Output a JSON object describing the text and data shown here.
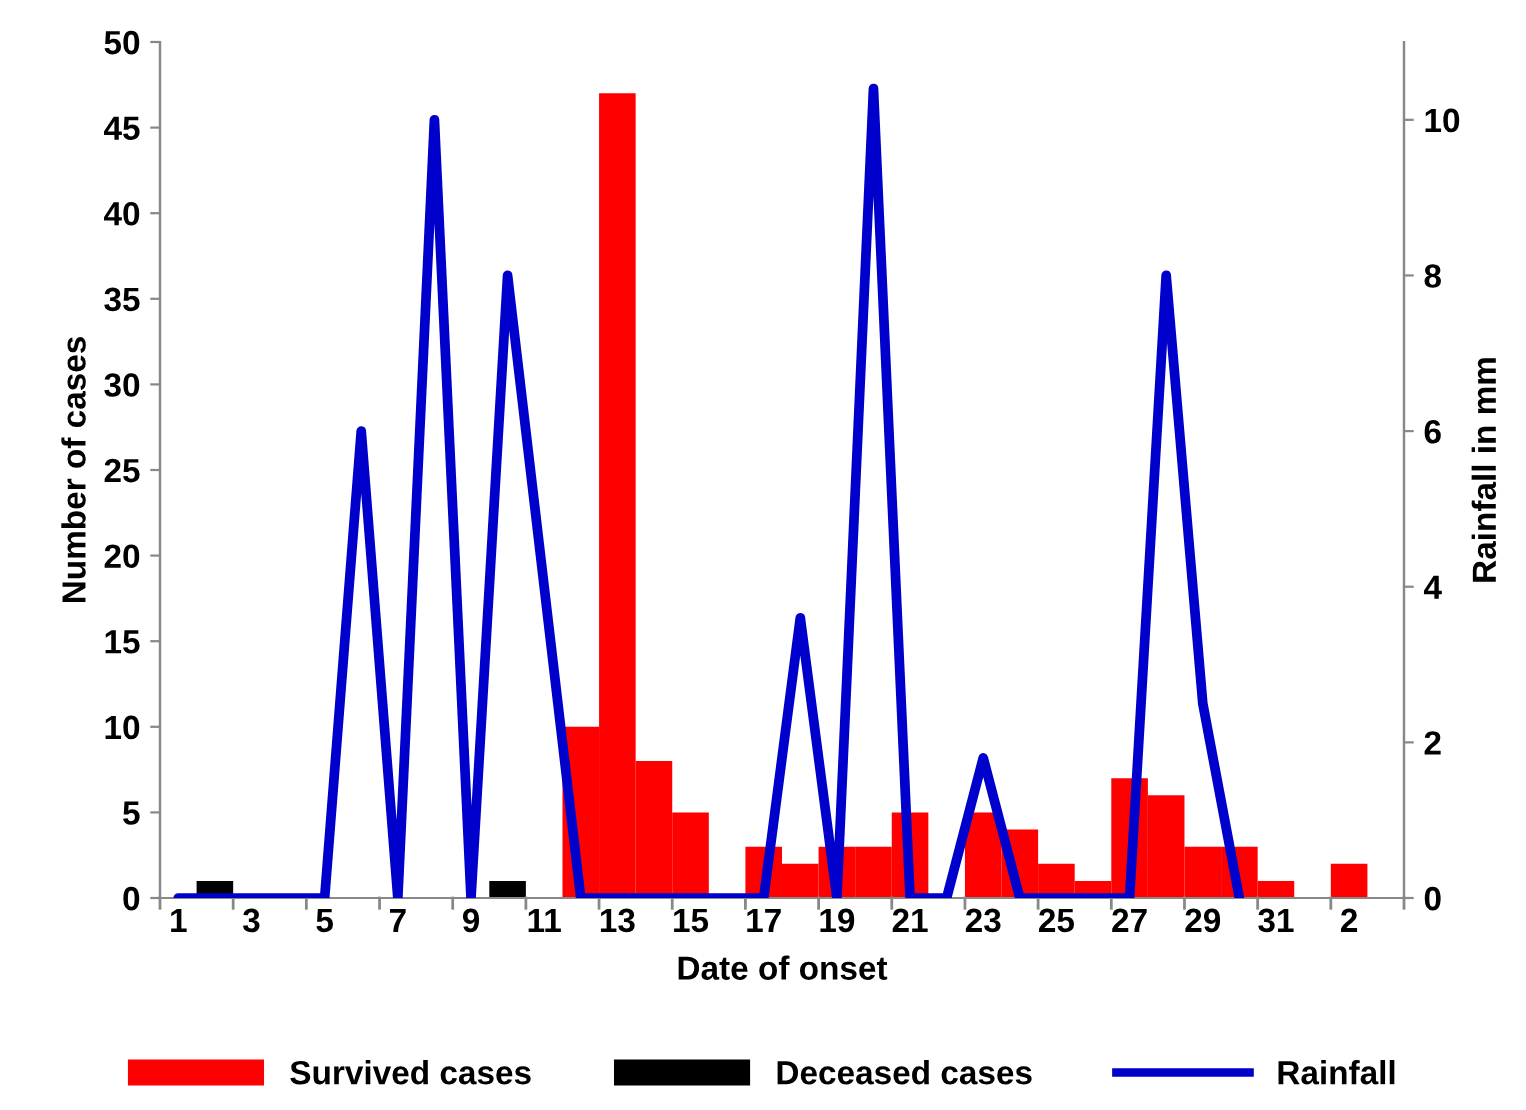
{
  "chart_data": {
    "type": "bar",
    "xlabel": "Date of onset",
    "ylabel": "Number of cases",
    "y2label": "Rainfall in mm",
    "categories": [
      "1",
      null,
      "3",
      null,
      "5",
      null,
      "7",
      null,
      "9",
      null,
      "11",
      null,
      "13",
      null,
      "15",
      null,
      "17",
      null,
      "19",
      null,
      "21",
      null,
      "23",
      null,
      "25",
      null,
      "27",
      null,
      "29",
      null,
      "31",
      null,
      "2",
      null
    ],
    "series": [
      {
        "name": "Survived cases",
        "color": "#ff0000",
        "values": [
          0,
          0,
          0,
          0,
          0,
          0,
          0,
          0,
          0,
          0,
          0,
          10,
          47,
          8,
          5,
          0,
          3,
          2,
          3,
          3,
          5,
          0,
          5,
          4,
          2,
          1,
          7,
          6,
          3,
          3,
          1,
          0,
          2,
          0
        ]
      },
      {
        "name": "Deceased cases",
        "color": "#000000",
        "values": [
          0,
          1,
          0,
          0,
          0,
          0,
          0,
          0,
          0,
          1,
          0,
          0,
          0,
          0,
          0,
          0,
          0,
          0,
          0,
          0,
          0,
          0,
          0,
          0,
          0,
          0,
          0,
          0,
          0,
          0,
          0,
          0,
          0,
          0
        ]
      },
      {
        "name": "Rainfall",
        "color": "#0000cc",
        "type": "line",
        "axis": "y2",
        "values": [
          0,
          0,
          0,
          0,
          0,
          6,
          0,
          10,
          0,
          8,
          4,
          0,
          0,
          0,
          0,
          0,
          0,
          3.6,
          0,
          10.4,
          0,
          0,
          1.8,
          0,
          0,
          0,
          0,
          8,
          2.5,
          0,
          null,
          null,
          null,
          null
        ]
      }
    ],
    "ylim": [
      0,
      50
    ],
    "yticks": [
      0,
      5,
      10,
      15,
      20,
      25,
      30,
      35,
      40,
      45,
      50
    ],
    "y2lim": [
      0,
      11
    ],
    "y2ticks": [
      0,
      2,
      4,
      6,
      8,
      10
    ],
    "grid": false,
    "legend": "bottom",
    "marker": "none",
    "line_style": "solid"
  }
}
